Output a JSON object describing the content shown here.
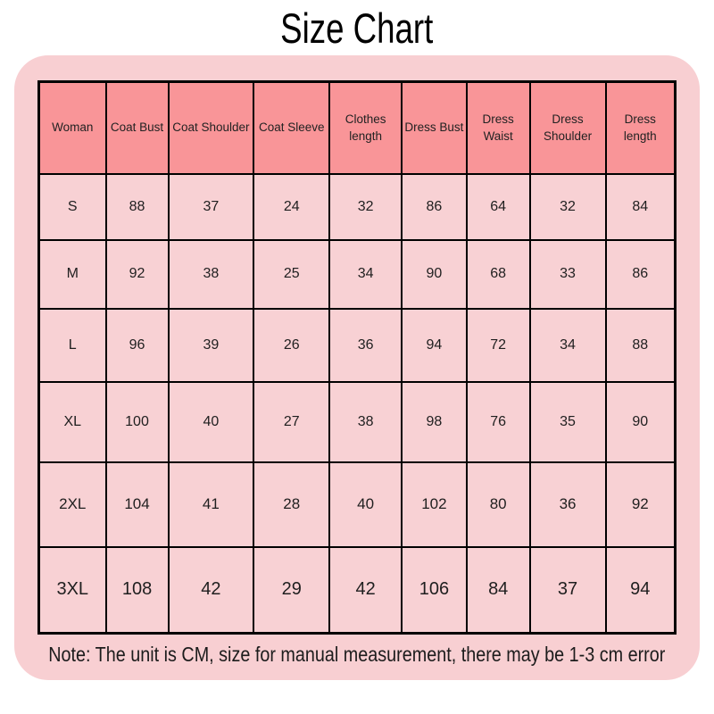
{
  "title": "Size Chart",
  "note": "Note: The unit is CM, size for manual measurement, there may be 1-3 cm error",
  "colors": {
    "card_bg": "#F8CFD2",
    "header_cell_bg": "#F99598",
    "data_cell_bg": "#F8D1D4",
    "border": "#000000",
    "title_text": "#000000"
  },
  "chart_data": {
    "type": "table",
    "title": "Size Chart",
    "unit": "CM",
    "columns": [
      "Woman",
      "Coat Bust",
      "Coat Shoulder",
      "Coat Sleeve",
      "Clothes length",
      "Dress Bust",
      "Dress Waist",
      "Dress Shoulder",
      "Dress length"
    ],
    "rows": [
      [
        "S",
        88,
        37,
        24,
        32,
        86,
        64,
        32,
        84
      ],
      [
        "M",
        92,
        38,
        25,
        34,
        90,
        68,
        33,
        86
      ],
      [
        "L",
        96,
        39,
        26,
        36,
        94,
        72,
        34,
        88
      ],
      [
        "XL",
        100,
        40,
        27,
        38,
        98,
        76,
        35,
        90
      ],
      [
        "2XL",
        104,
        41,
        28,
        40,
        102,
        80,
        36,
        92
      ],
      [
        "3XL",
        108,
        42,
        29,
        42,
        106,
        84,
        37,
        94
      ]
    ]
  }
}
